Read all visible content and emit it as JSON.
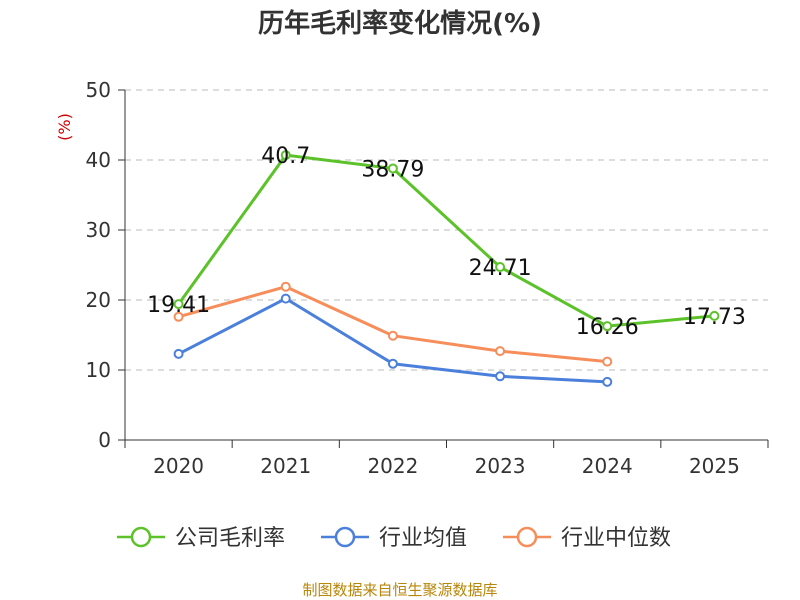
{
  "chart_data": {
    "type": "line",
    "title": "历年毛利率变化情况(%)",
    "ylabel": "(%)",
    "xlabel": "",
    "categories": [
      "2020",
      "2021",
      "2022",
      "2023",
      "2024",
      "2025"
    ],
    "ylim": [
      0,
      50
    ],
    "yticks": [
      0,
      10,
      20,
      30,
      40,
      50
    ],
    "grid": true,
    "legend_position": "bottom",
    "series": [
      {
        "name": "公司毛利率",
        "color": "#5cc22a",
        "values": [
          19.41,
          40.7,
          38.79,
          24.71,
          16.26,
          17.73
        ],
        "labels": [
          "19.41",
          "40.7",
          "38.79",
          "24.71",
          "16.26",
          "17.73"
        ]
      },
      {
        "name": "行业均值",
        "color": "#4a7fdb",
        "values": [
          12.3,
          20.2,
          10.9,
          9.1,
          8.3,
          null
        ]
      },
      {
        "name": "行业中位数",
        "color": "#f68d5a",
        "values": [
          17.6,
          21.9,
          14.9,
          12.7,
          11.2,
          null
        ]
      }
    ],
    "source": "制图数据来自恒生聚源数据库"
  }
}
